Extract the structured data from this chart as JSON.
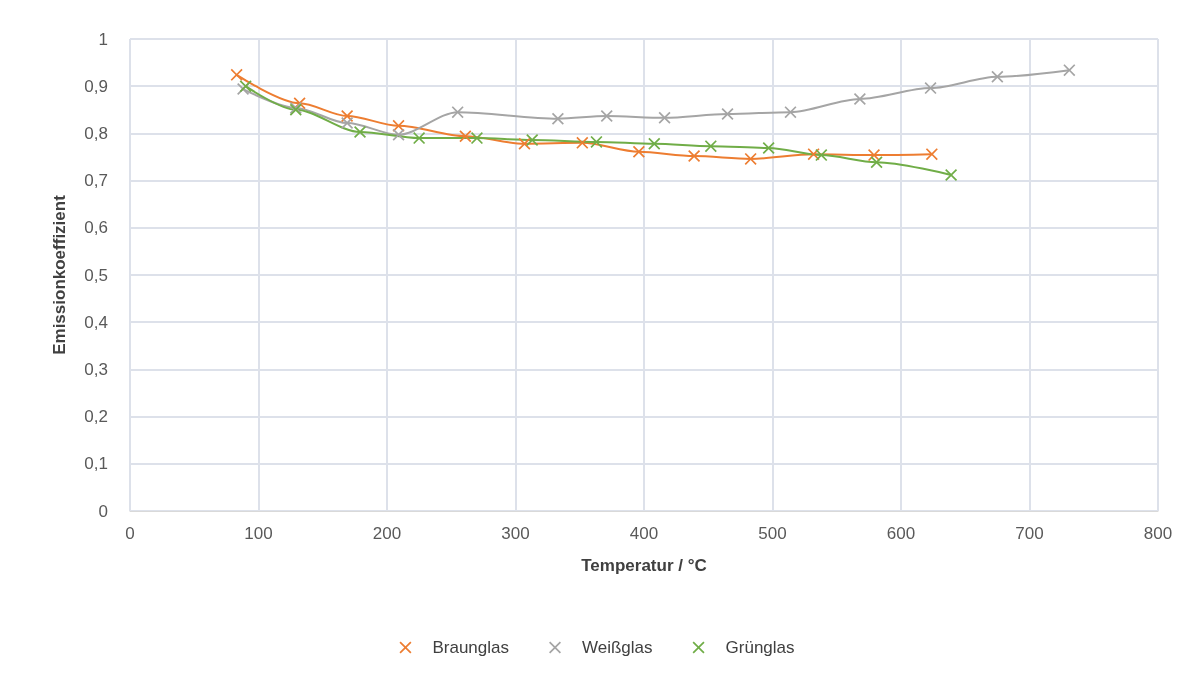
{
  "chart_data": {
    "type": "line",
    "xlabel": "Temperatur / °C",
    "ylabel": "Emissionkoeffizient",
    "xlim": [
      0,
      800
    ],
    "xticks": [
      0,
      100,
      200,
      300,
      400,
      500,
      600,
      700,
      800
    ],
    "ylim": [
      0,
      1
    ],
    "yticks": [
      {
        "value": 0,
        "label": "0"
      },
      {
        "value": 0.1,
        "label": "0,1"
      },
      {
        "value": 0.2,
        "label": "0,2"
      },
      {
        "value": 0.3,
        "label": "0,3"
      },
      {
        "value": 0.4,
        "label": "0,4"
      },
      {
        "value": 0.5,
        "label": "0,5"
      },
      {
        "value": 0.6,
        "label": "0,6"
      },
      {
        "value": 0.7,
        "label": "0,7"
      },
      {
        "value": 0.8,
        "label": "0,8"
      },
      {
        "value": 0.9,
        "label": "0,9"
      },
      {
        "value": 1,
        "label": "1"
      }
    ],
    "grid": true,
    "legend": "bottom",
    "marker": "cross",
    "line_style": "solid",
    "series": [
      {
        "name": "Braunglas",
        "color": "#ed7d31",
        "x": [
          83,
          132,
          169,
          209,
          261,
          307,
          352,
          396,
          439,
          483,
          532,
          579,
          624
        ],
        "values": [
          0.924,
          0.864,
          0.837,
          0.816,
          0.794,
          0.778,
          0.78,
          0.761,
          0.752,
          0.746,
          0.756,
          0.754,
          0.756
        ]
      },
      {
        "name": "Weißglas",
        "color": "#a5a5a5",
        "x": [
          88,
          129,
          169,
          209,
          255,
          333,
          371,
          416,
          465,
          514,
          568,
          623,
          675,
          731
        ],
        "values": [
          0.894,
          0.854,
          0.822,
          0.797,
          0.845,
          0.831,
          0.837,
          0.833,
          0.841,
          0.845,
          0.873,
          0.896,
          0.92,
          0.934
        ]
      },
      {
        "name": "Grünglas",
        "color": "#70ad47",
        "x": [
          90,
          129,
          179,
          225,
          270,
          313,
          363,
          408,
          452,
          497,
          538,
          581,
          639
        ],
        "values": [
          0.9,
          0.85,
          0.803,
          0.79,
          0.79,
          0.786,
          0.782,
          0.778,
          0.773,
          0.769,
          0.754,
          0.739,
          0.712
        ]
      }
    ]
  }
}
